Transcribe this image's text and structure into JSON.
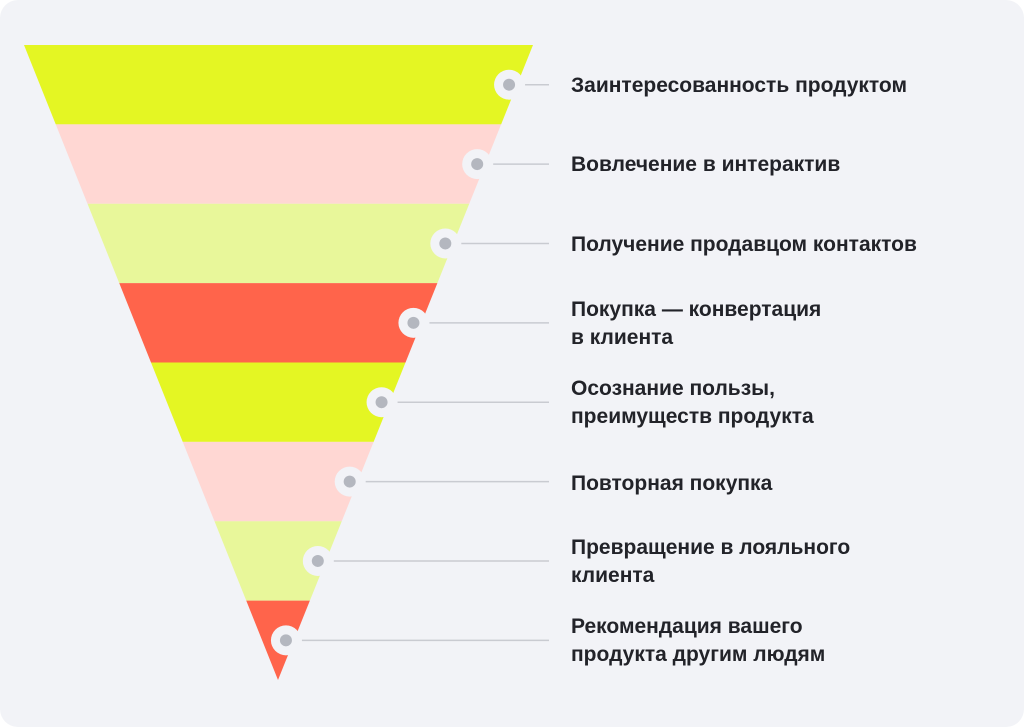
{
  "funnel": {
    "stages": [
      {
        "label": "Заинтересованность продуктом",
        "color": "#e4f623"
      },
      {
        "label": "Вовлечение в интерактив",
        "color": "#ffd7d3"
      },
      {
        "label": "Получение продавцом контактов",
        "color": "#e8f79a"
      },
      {
        "label": "Покупка — конвертация\nв клиента",
        "color": "#ff644b"
      },
      {
        "label": "Осознание пользы,\nпреимуществ продукта",
        "color": "#e4f623"
      },
      {
        "label": "Повторная покупка",
        "color": "#ffd7d3"
      },
      {
        "label": "Превращение в лояльного\nклиента",
        "color": "#e8f79a"
      },
      {
        "label": "Рекомендация вашего\nпродукта другим людям",
        "color": "#ff644b"
      }
    ]
  }
}
